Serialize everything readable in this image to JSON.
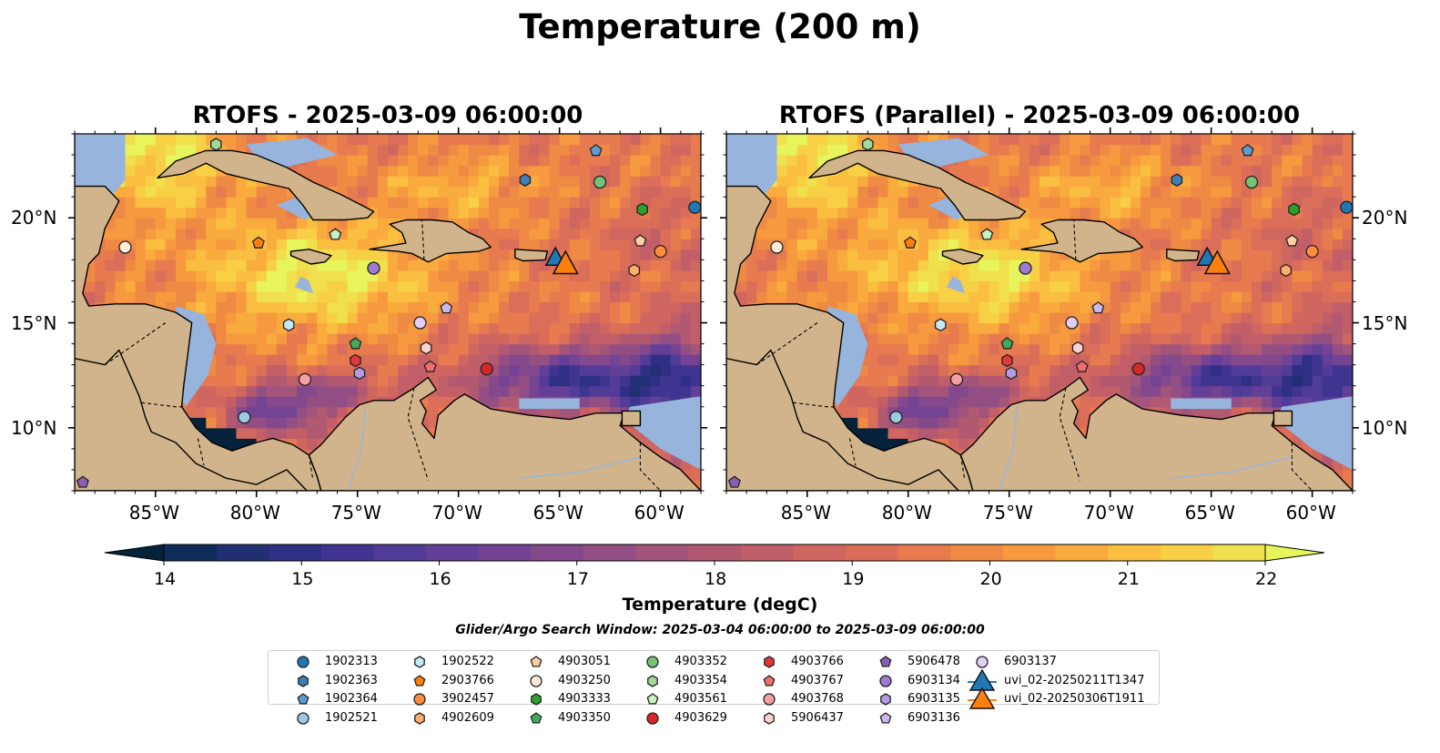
{
  "title": "Temperature (200 m)",
  "panels": [
    {
      "title": "RTOFS - 2025-03-09 06:00:00",
      "variant": "a"
    },
    {
      "title": "RTOFS (Parallel) - 2025-03-09 06:00:00",
      "variant": "b"
    }
  ],
  "map": {
    "lon_range": [
      -89,
      -58
    ],
    "lat_range": [
      7,
      24
    ],
    "lon_ticks": [
      "85°W",
      "80°W",
      "75°W",
      "70°W",
      "65°W",
      "60°W"
    ],
    "lat_ticks": [
      "20°N",
      "15°N",
      "10°N"
    ],
    "land_color": "#d2b48c",
    "shelf_color": "#96b4dc",
    "coastline_color": "#000000"
  },
  "colorbar": {
    "label": "Temperature (degC)",
    "ticks": [
      "14",
      "15",
      "16",
      "17",
      "18",
      "19",
      "20",
      "21",
      "22"
    ],
    "range": [
      14,
      22
    ],
    "extend": "both",
    "colors": [
      "#04233b",
      "#0f2c58",
      "#212f73",
      "#302f86",
      "#3f3591",
      "#513c98",
      "#633f98",
      "#744394",
      "#84498c",
      "#934e84",
      "#a3547b",
      "#b25972",
      "#c25e68",
      "#cf6660",
      "#db6e58",
      "#e77a4e",
      "#ef8a45",
      "#f6993f",
      "#f9ab3e",
      "#fabe41",
      "#f7d046",
      "#f0e04d",
      "#e8f45c"
    ]
  },
  "search_window": "Glider/Argo Search Window: 2025-03-04 06:00:00 to 2025-03-09 06:00:00",
  "legend": [
    {
      "label": "1902313",
      "marker": "circle",
      "color": "#1f77b4"
    },
    {
      "label": "1902363",
      "marker": "hexagon",
      "color": "#3e7fb5"
    },
    {
      "label": "1902364",
      "marker": "pentagon",
      "color": "#5e9bd1"
    },
    {
      "label": "1902521",
      "marker": "circle",
      "color": "#9ecae1"
    },
    {
      "label": "1902522",
      "marker": "hexagon",
      "color": "#c6e9f7"
    },
    {
      "label": "2903766",
      "marker": "pentagon",
      "color": "#ff7f0e"
    },
    {
      "label": "3902457",
      "marker": "circle",
      "color": "#fd8d3c"
    },
    {
      "label": "4902609",
      "marker": "hexagon",
      "color": "#fdae6b"
    },
    {
      "label": "4903051",
      "marker": "pentagon",
      "color": "#fdd0a2"
    },
    {
      "label": "4903250",
      "marker": "circle",
      "color": "#feecd8"
    },
    {
      "label": "4903333",
      "marker": "hexagon",
      "color": "#2ca02c"
    },
    {
      "label": "4903350",
      "marker": "pentagon",
      "color": "#41ab5d"
    },
    {
      "label": "4903352",
      "marker": "circle",
      "color": "#74c476"
    },
    {
      "label": "4903354",
      "marker": "hexagon",
      "color": "#a1d99b"
    },
    {
      "label": "4903561",
      "marker": "pentagon",
      "color": "#c7f2bf"
    },
    {
      "label": "4903629",
      "marker": "circle",
      "color": "#d62728"
    },
    {
      "label": "4903766",
      "marker": "hexagon",
      "color": "#e0393a"
    },
    {
      "label": "4903767",
      "marker": "pentagon",
      "color": "#f07070"
    },
    {
      "label": "4903768",
      "marker": "circle",
      "color": "#f4a0a0"
    },
    {
      "label": "5906437",
      "marker": "hexagon",
      "color": "#fcd2cf"
    },
    {
      "label": "5906478",
      "marker": "pentagon",
      "color": "#8c5fb5"
    },
    {
      "label": "6903134",
      "marker": "circle",
      "color": "#9e7bd0"
    },
    {
      "label": "6903135",
      "marker": "hexagon",
      "color": "#b49ae0"
    },
    {
      "label": "6903136",
      "marker": "pentagon",
      "color": "#cdb8ec"
    },
    {
      "label": "6903137",
      "marker": "circle",
      "color": "#e2cdf7"
    },
    {
      "label": "uvi_02-20250211T1347",
      "marker": "triangle-line",
      "color": "#1f77b4"
    },
    {
      "label": "uvi_02-20250306T1911",
      "marker": "triangle-line",
      "color": "#ff7f0e"
    }
  ],
  "observations": [
    {
      "id": "1902313",
      "lon": -58.3,
      "lat": 20.5
    },
    {
      "id": "1902363",
      "lon": -66.7,
      "lat": 21.8
    },
    {
      "id": "1902364",
      "lon": -63.2,
      "lat": 23.2
    },
    {
      "id": "1902521",
      "lon": -80.6,
      "lat": 10.5
    },
    {
      "id": "1902522",
      "lon": -78.4,
      "lat": 14.9
    },
    {
      "id": "2903766",
      "lon": -79.9,
      "lat": 18.8
    },
    {
      "id": "3902457",
      "lon": -60.0,
      "lat": 18.4
    },
    {
      "id": "4902609",
      "lon": -61.3,
      "lat": 17.5
    },
    {
      "id": "4903051",
      "lon": -61.0,
      "lat": 18.9
    },
    {
      "id": "4903250",
      "lon": -86.5,
      "lat": 18.6
    },
    {
      "id": "4903333",
      "lon": -60.9,
      "lat": 20.4
    },
    {
      "id": "4903350",
      "lon": -75.1,
      "lat": 14.0
    },
    {
      "id": "4903352",
      "lon": -63.0,
      "lat": 21.7
    },
    {
      "id": "4903354",
      "lon": -82.0,
      "lat": 23.5
    },
    {
      "id": "4903561",
      "lon": -76.1,
      "lat": 19.2
    },
    {
      "id": "4903629",
      "lon": -68.6,
      "lat": 12.8
    },
    {
      "id": "4903766",
      "lon": -75.1,
      "lat": 13.2
    },
    {
      "id": "4903767",
      "lon": -71.4,
      "lat": 12.9
    },
    {
      "id": "4903768",
      "lon": -77.6,
      "lat": 12.3
    },
    {
      "id": "5906437",
      "lon": -71.6,
      "lat": 13.8
    },
    {
      "id": "5906478",
      "lon": -88.6,
      "lat": 7.4
    },
    {
      "id": "6903134",
      "lon": -74.2,
      "lat": 17.6
    },
    {
      "id": "6903135",
      "lon": -74.9,
      "lat": 12.6
    },
    {
      "id": "6903136",
      "lon": -70.6,
      "lat": 15.7
    },
    {
      "id": "6903137",
      "lon": -71.9,
      "lat": 15.0
    }
  ],
  "gliders": [
    {
      "id": "uvi_02-20250211T1347",
      "lon": -65.2,
      "lat": 18.1
    },
    {
      "id": "uvi_02-20250306T1911",
      "lon": -64.7,
      "lat": 17.8
    }
  ]
}
